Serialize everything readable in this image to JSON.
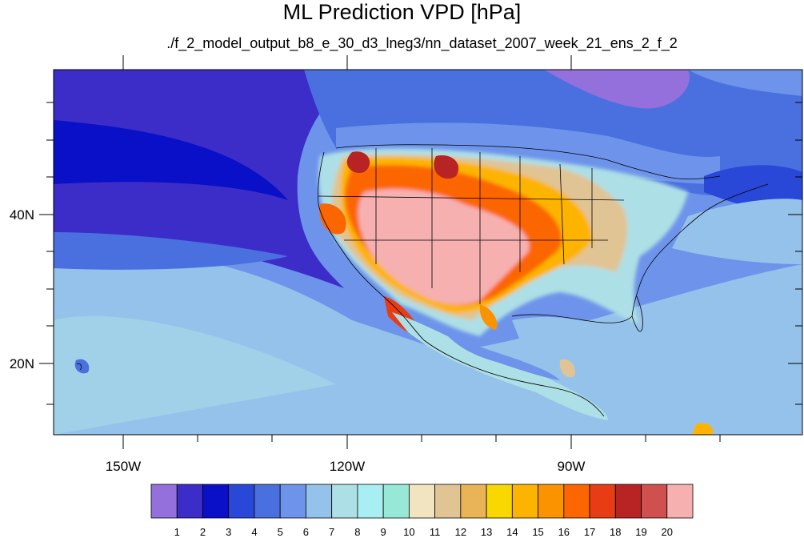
{
  "header": {
    "title": "ML Prediction VPD [hPa]",
    "subtitle": "./f_2_model_output_b8_e_30_d3_lneg3/nn_dataset_2007_week_21_ens_2_f_2"
  },
  "axes": {
    "lon_labels": [
      "150W",
      "120W",
      "90W"
    ],
    "lat_labels": [
      "40N",
      "20N"
    ],
    "lon_range": [
      -159.5,
      -61.5
    ],
    "lat_range": [
      11,
      59
    ]
  },
  "colorbar": {
    "labels": [
      "1",
      "2",
      "3",
      "4",
      "5",
      "6",
      "7",
      "8",
      "9",
      "10",
      "11",
      "12",
      "13",
      "14",
      "15",
      "16",
      "17",
      "18",
      "19",
      "20"
    ],
    "colors": [
      "#9370db",
      "#3c2cc8",
      "#0a10c8",
      "#2a48d8",
      "#4a70e0",
      "#6d94ea",
      "#95c2ea",
      "#addfe6",
      "#a8eef2",
      "#98e8d8",
      "#f2e4c0",
      "#e0c494",
      "#e8b455",
      "#f8d800",
      "#fdb400",
      "#fb9300",
      "#fc6600",
      "#e83c14",
      "#b82424",
      "#d05050",
      "#f6b0b0"
    ]
  },
  "chart_data": {
    "type": "heatmap",
    "title": "ML Prediction VPD [hPa]",
    "subtitle": "./f_2_model_output_b8_e_30_d3_lneg3/nn_dataset_2007_week_21_ens_2_f_2",
    "x_ticks": [
      "150W",
      "120W",
      "90W"
    ],
    "y_ticks": [
      "40N",
      "20N"
    ],
    "xlim": [
      -159.5,
      -61.5
    ],
    "ylim": [
      11,
      59
    ],
    "color_levels": [
      1,
      2,
      3,
      4,
      5,
      6,
      7,
      8,
      9,
      10,
      11,
      12,
      13,
      14,
      15,
      16,
      17,
      18,
      19,
      20
    ],
    "unit": "hPa"
  }
}
